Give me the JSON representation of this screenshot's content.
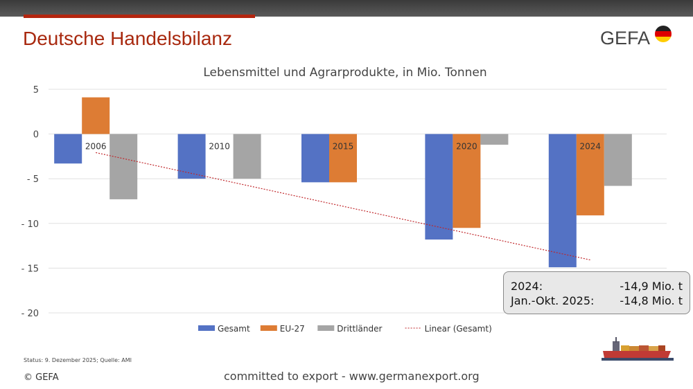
{
  "header": {
    "title": "Deutsche Handelsbilanz",
    "logo": "GEFA"
  },
  "chart_data": {
    "type": "bar",
    "title": "Lebensmittel und Agrarprodukte, in Mio. Tonnen",
    "categories": [
      "2006",
      "2010",
      "2015",
      "2020",
      "2024"
    ],
    "series": [
      {
        "name": "Gesamt",
        "color": "#5472c4",
        "values": [
          -3.3,
          -5.0,
          -5.4,
          -11.8,
          -14.9
        ]
      },
      {
        "name": "EU-27",
        "color": "#dd7c34",
        "values": [
          4.1,
          0,
          -5.4,
          -10.5,
          -9.1
        ]
      },
      {
        "name": "Drittländer",
        "color": "#a5a5a5",
        "values": [
          -7.3,
          -5.0,
          0,
          -1.2,
          -5.8
        ]
      }
    ],
    "trendline": {
      "name": "Linear (Gesamt)",
      "of": "Gesamt",
      "color": "#c0262a"
    },
    "ylim": [
      -20,
      5
    ],
    "yticks": [
      5,
      0,
      -5,
      -10,
      -15,
      -20
    ],
    "ytick_labels": [
      "5",
      "0",
      "- 5",
      "- 10",
      "- 15",
      "- 20"
    ],
    "grid": true,
    "legend": "bottom"
  },
  "callout": {
    "rows": [
      {
        "label": "2024:",
        "value": "-14,9 Mio. t"
      },
      {
        "label": "Jan.-Okt. 2025:",
        "value": "-14,8 Mio. t"
      }
    ]
  },
  "footer": {
    "status": "Status: 9. Dezember 2025; Quelle: AMI",
    "copyright": "© GEFA",
    "tagline": "committed to export - www.germanexport.org"
  }
}
